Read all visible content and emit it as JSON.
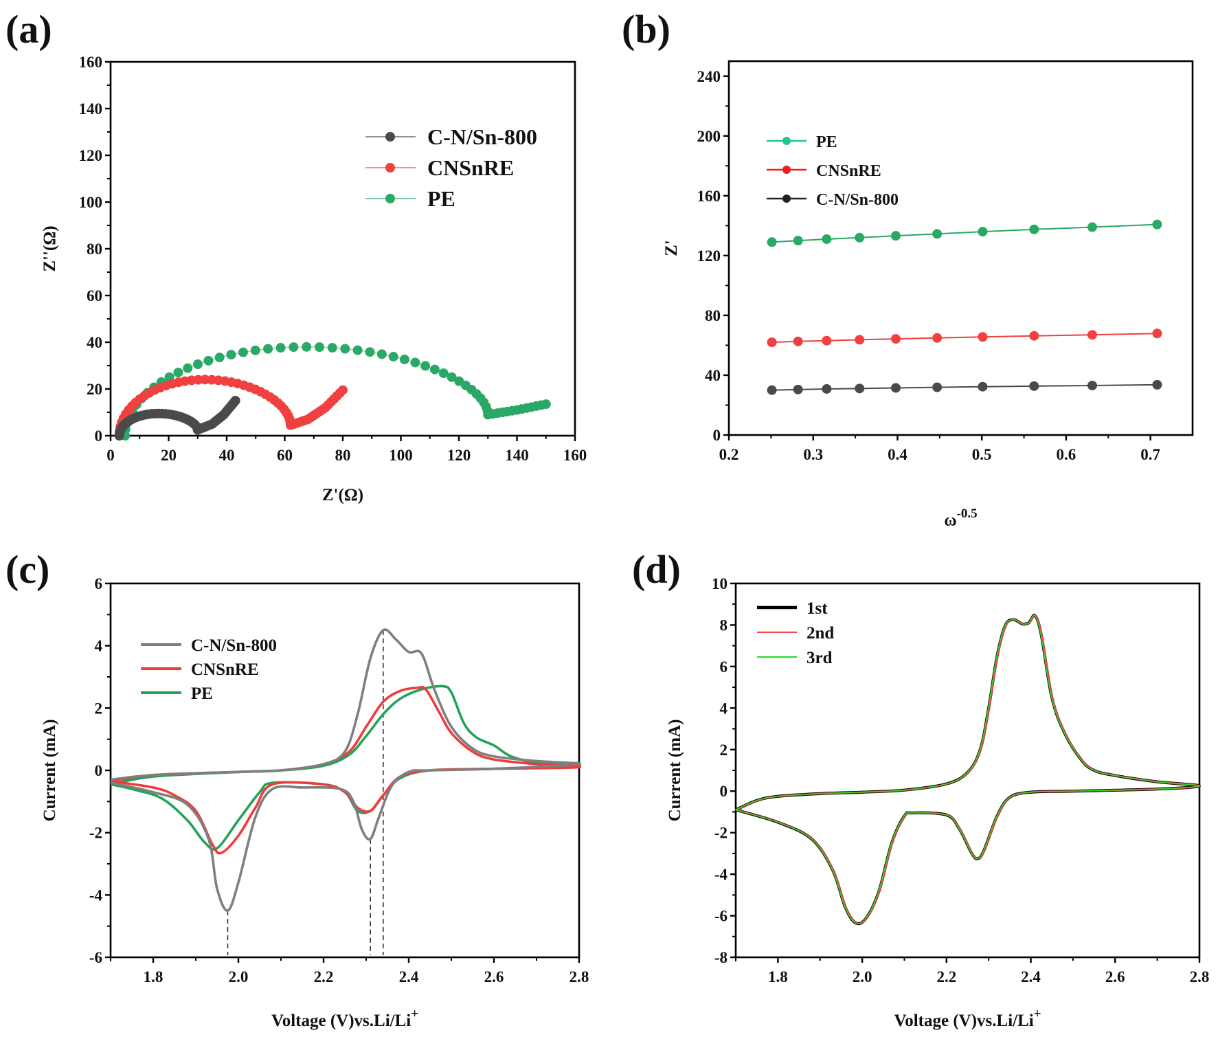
{
  "figure": {
    "panels": [
      "(a)",
      "(b)",
      "(c)",
      "(d)"
    ]
  },
  "chart_data": [
    {
      "id": "a",
      "panel_label": "(a)",
      "type": "scatter",
      "title": "",
      "xlabel": "Z'(Ω)",
      "ylabel": "Z''(Ω)",
      "xlim": [
        0,
        160
      ],
      "ylim": [
        0,
        160
      ],
      "xticks": [
        0,
        20,
        40,
        60,
        80,
        100,
        120,
        140,
        160
      ],
      "yticks": [
        0,
        20,
        40,
        60,
        80,
        100,
        120,
        140,
        160
      ],
      "grid": false,
      "legend_position": "upper-right",
      "series": [
        {
          "name": "C-N/Sn-800",
          "color": "#4a4a4a",
          "arc": {
            "start": 3,
            "end": 30,
            "peak": 9.5,
            "min": 2.5
          },
          "tail": [
            [
              30,
              2.5
            ],
            [
              35,
              5
            ],
            [
              39,
              9
            ],
            [
              43,
              15
            ]
          ]
        },
        {
          "name": "CNSnRE",
          "color": "#f04040",
          "arc": {
            "start": 3,
            "end": 62,
            "peak": 24,
            "min": 4.5
          },
          "tail": [
            [
              62,
              4.5
            ],
            [
              68,
              7
            ],
            [
              74,
              12
            ],
            [
              80,
              19.5
            ]
          ]
        },
        {
          "name": "PE",
          "color": "#2aa865",
          "arc": {
            "start": 5,
            "end": 130,
            "peak": 38,
            "min": 9
          },
          "tail": [
            [
              130,
              9
            ],
            [
              140,
              11
            ],
            [
              150,
              13.5
            ]
          ]
        }
      ]
    },
    {
      "id": "b",
      "panel_label": "(b)",
      "type": "line",
      "title": "",
      "xlabel": "ω",
      "xlabel_sup": "-0.5",
      "ylabel": "Z'",
      "xlim": [
        0.2,
        0.75
      ],
      "ylim": [
        0,
        250
      ],
      "xticks": [
        0.2,
        0.3,
        0.4,
        0.5,
        0.6,
        0.7
      ],
      "yticks": [
        0,
        40,
        80,
        120,
        160,
        200,
        240
      ],
      "grid": false,
      "legend_position": "upper-left",
      "x": [
        0.251,
        0.282,
        0.316,
        0.355,
        0.398,
        0.447,
        0.501,
        0.562,
        0.631,
        0.708
      ],
      "series": [
        {
          "name": "PE",
          "color": "#2aa865",
          "legend_color": "#20c98a",
          "values": [
            129,
            130,
            131,
            132,
            133.2,
            134.5,
            136,
            137.5,
            139,
            140.8
          ]
        },
        {
          "name": "CNSnRE",
          "color": "#f04040",
          "legend_color": "#ee1c1c",
          "values": [
            62,
            62.6,
            63.1,
            63.7,
            64.3,
            64.9,
            65.6,
            66.3,
            67,
            67.9
          ]
        },
        {
          "name": "C-N/Sn-800",
          "color": "#4a4a4a",
          "legend_color": "#222222",
          "values": [
            30,
            30.4,
            30.8,
            31.1,
            31.5,
            31.9,
            32.3,
            32.7,
            33.1,
            33.6
          ]
        }
      ]
    },
    {
      "id": "c",
      "panel_label": "(c)",
      "type": "line",
      "title": "",
      "xlabel": "Voltage (V)vs.Li/Li",
      "xlabel_sup": "+",
      "ylabel": "Current (mA)",
      "xlim": [
        1.7,
        2.8
      ],
      "ylim": [
        -6,
        6
      ],
      "xticks": [
        1.8,
        2.0,
        2.2,
        2.4,
        2.6,
        2.8
      ],
      "yticks": [
        -6,
        -4,
        -2,
        0,
        2,
        4,
        6
      ],
      "grid": false,
      "legend_position": "upper-left",
      "reference_lines_x": [
        1.975,
        2.31,
        2.34
      ],
      "series": [
        {
          "name": "C-N/Sn-800",
          "color": "#7f7f7f",
          "anodic": [
            [
              1.7,
              -0.3
            ],
            [
              1.8,
              -0.15
            ],
            [
              2.0,
              -0.05
            ],
            [
              2.1,
              0.0
            ],
            [
              2.2,
              0.2
            ],
            [
              2.25,
              0.6
            ],
            [
              2.28,
              1.8
            ],
            [
              2.31,
              3.6
            ],
            [
              2.34,
              4.5
            ],
            [
              2.37,
              4.2
            ],
            [
              2.4,
              3.8
            ],
            [
              2.43,
              3.75
            ],
            [
              2.46,
              2.6
            ],
            [
              2.5,
              1.4
            ],
            [
              2.55,
              0.7
            ],
            [
              2.6,
              0.45
            ],
            [
              2.7,
              0.3
            ],
            [
              2.8,
              0.2
            ]
          ],
          "cathodic": [
            [
              2.8,
              0.2
            ],
            [
              2.6,
              0.05
            ],
            [
              2.45,
              0.0
            ],
            [
              2.4,
              -0.05
            ],
            [
              2.36,
              -0.5
            ],
            [
              2.33,
              -1.5
            ],
            [
              2.31,
              -2.2
            ],
            [
              2.29,
              -1.9
            ],
            [
              2.27,
              -1.0
            ],
            [
              2.24,
              -0.6
            ],
            [
              2.15,
              -0.55
            ],
            [
              2.08,
              -0.6
            ],
            [
              2.04,
              -1.5
            ],
            [
              2.0,
              -3.6
            ],
            [
              1.975,
              -4.5
            ],
            [
              1.95,
              -3.8
            ],
            [
              1.93,
              -2.2
            ],
            [
              1.88,
              -1.1
            ],
            [
              1.8,
              -0.7
            ],
            [
              1.7,
              -0.4
            ]
          ]
        },
        {
          "name": "CNSnRE",
          "color": "#f03c3c",
          "anodic": [
            [
              1.7,
              -0.35
            ],
            [
              1.8,
              -0.15
            ],
            [
              2.0,
              -0.05
            ],
            [
              2.1,
              0.0
            ],
            [
              2.2,
              0.2
            ],
            [
              2.26,
              0.6
            ],
            [
              2.3,
              1.4
            ],
            [
              2.34,
              2.2
            ],
            [
              2.38,
              2.55
            ],
            [
              2.42,
              2.65
            ],
            [
              2.44,
              2.6
            ],
            [
              2.47,
              1.9
            ],
            [
              2.5,
              1.2
            ],
            [
              2.55,
              0.6
            ],
            [
              2.6,
              0.35
            ],
            [
              2.7,
              0.2
            ],
            [
              2.8,
              0.1
            ]
          ],
          "cathodic": [
            [
              2.8,
              0.1
            ],
            [
              2.6,
              0.05
            ],
            [
              2.45,
              0.0
            ],
            [
              2.38,
              -0.2
            ],
            [
              2.34,
              -0.8
            ],
            [
              2.31,
              -1.3
            ],
            [
              2.28,
              -1.2
            ],
            [
              2.25,
              -0.7
            ],
            [
              2.2,
              -0.45
            ],
            [
              2.08,
              -0.45
            ],
            [
              2.04,
              -1.2
            ],
            [
              2.0,
              -2.1
            ],
            [
              1.96,
              -2.65
            ],
            [
              1.94,
              -2.4
            ],
            [
              1.9,
              -1.3
            ],
            [
              1.85,
              -0.8
            ],
            [
              1.8,
              -0.55
            ],
            [
              1.7,
              -0.35
            ]
          ]
        },
        {
          "name": "PE",
          "color": "#22a35a",
          "anodic": [
            [
              1.7,
              -0.45
            ],
            [
              1.8,
              -0.2
            ],
            [
              2.0,
              -0.05
            ],
            [
              2.1,
              0.0
            ],
            [
              2.2,
              0.15
            ],
            [
              2.26,
              0.5
            ],
            [
              2.3,
              1.1
            ],
            [
              2.34,
              1.8
            ],
            [
              2.38,
              2.3
            ],
            [
              2.43,
              2.6
            ],
            [
              2.48,
              2.7
            ],
            [
              2.5,
              2.5
            ],
            [
              2.53,
              1.5
            ],
            [
              2.56,
              1.05
            ],
            [
              2.6,
              0.8
            ],
            [
              2.64,
              0.45
            ],
            [
              2.7,
              0.25
            ],
            [
              2.8,
              0.15
            ]
          ],
          "cathodic": [
            [
              2.8,
              0.15
            ],
            [
              2.6,
              0.05
            ],
            [
              2.45,
              0.0
            ],
            [
              2.38,
              -0.25
            ],
            [
              2.34,
              -0.8
            ],
            [
              2.31,
              -1.3
            ],
            [
              2.28,
              -1.3
            ],
            [
              2.25,
              -0.7
            ],
            [
              2.2,
              -0.45
            ],
            [
              2.08,
              -0.4
            ],
            [
              2.05,
              -0.7
            ],
            [
              2.0,
              -1.6
            ],
            [
              1.95,
              -2.5
            ],
            [
              1.92,
              -2.3
            ],
            [
              1.88,
              -1.6
            ],
            [
              1.82,
              -0.9
            ],
            [
              1.75,
              -0.6
            ],
            [
              1.7,
              -0.45
            ]
          ]
        }
      ]
    },
    {
      "id": "d",
      "panel_label": "(d)",
      "type": "line",
      "title": "",
      "xlabel": "Voltage (V)vs.Li/Li",
      "xlabel_sup": "+",
      "ylabel": "Current (mA)",
      "xlim": [
        1.7,
        2.8
      ],
      "ylim": [
        -8,
        10
      ],
      "xticks": [
        1.8,
        2.0,
        2.2,
        2.4,
        2.6,
        2.8
      ],
      "yticks": [
        -8,
        -6,
        -4,
        -2,
        0,
        2,
        4,
        6,
        8,
        10
      ],
      "grid": false,
      "legend_position": "upper-left",
      "series": [
        {
          "name": "1st",
          "color": "#000000"
        },
        {
          "name": "2nd",
          "color": "#f04848"
        },
        {
          "name": "3rd",
          "color": "#22dd22"
        }
      ],
      "curve": {
        "anodic": [
          [
            1.7,
            -0.9
          ],
          [
            1.75,
            -0.45
          ],
          [
            1.8,
            -0.25
          ],
          [
            1.9,
            -0.12
          ],
          [
            2.0,
            -0.05
          ],
          [
            2.1,
            0.05
          ],
          [
            2.2,
            0.35
          ],
          [
            2.25,
            0.9
          ],
          [
            2.28,
            2.0
          ],
          [
            2.3,
            4.0
          ],
          [
            2.32,
            6.5
          ],
          [
            2.34,
            8.0
          ],
          [
            2.36,
            8.25
          ],
          [
            2.38,
            8.05
          ],
          [
            2.395,
            8.1
          ],
          [
            2.41,
            8.45
          ],
          [
            2.425,
            7.5
          ],
          [
            2.45,
            4.5
          ],
          [
            2.48,
            2.8
          ],
          [
            2.52,
            1.5
          ],
          [
            2.55,
            1.0
          ],
          [
            2.6,
            0.75
          ],
          [
            2.7,
            0.45
          ],
          [
            2.8,
            0.25
          ]
        ],
        "cathodic": [
          [
            2.8,
            0.25
          ],
          [
            2.7,
            0.1
          ],
          [
            2.5,
            0.0
          ],
          [
            2.4,
            -0.05
          ],
          [
            2.35,
            -0.3
          ],
          [
            2.32,
            -1.2
          ],
          [
            2.29,
            -2.8
          ],
          [
            2.275,
            -3.25
          ],
          [
            2.26,
            -3.0
          ],
          [
            2.23,
            -1.8
          ],
          [
            2.2,
            -1.15
          ],
          [
            2.12,
            -1.05
          ],
          [
            2.1,
            -1.2
          ],
          [
            2.07,
            -2.5
          ],
          [
            2.04,
            -4.8
          ],
          [
            2.01,
            -6.1
          ],
          [
            1.985,
            -6.35
          ],
          [
            1.96,
            -5.6
          ],
          [
            1.93,
            -3.8
          ],
          [
            1.88,
            -2.3
          ],
          [
            1.8,
            -1.5
          ],
          [
            1.7,
            -0.9
          ]
        ]
      }
    }
  ]
}
